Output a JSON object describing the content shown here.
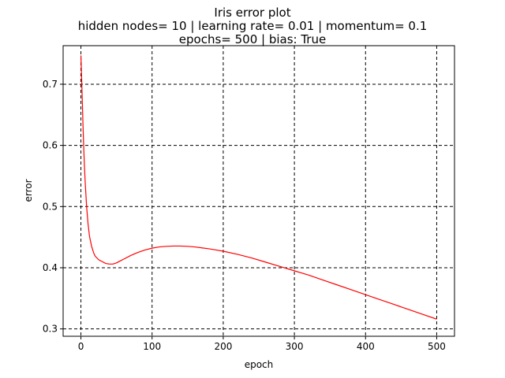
{
  "chart_data": {
    "type": "line",
    "title_lines": [
      "Iris error plot",
      "hidden nodes= 10 | learning rate= 0.01 | momentum= 0.1",
      "epochs= 500 | bias: True"
    ],
    "xlabel": "epoch",
    "ylabel": "error",
    "xlim": [
      -25,
      525
    ],
    "ylim": [
      0.288,
      0.763
    ],
    "xticks": [
      0,
      100,
      200,
      300,
      400,
      500
    ],
    "yticks": [
      0.3,
      0.4,
      0.5,
      0.6,
      0.7
    ],
    "xtick_labels": [
      "0",
      "100",
      "200",
      "300",
      "400",
      "500"
    ],
    "ytick_labels": [
      "0.3",
      "0.4",
      "0.5",
      "0.6",
      "0.7"
    ],
    "grid": true,
    "grid_style": "dashed",
    "series": [
      {
        "color": "#ff0000",
        "x": [
          0,
          1,
          2,
          3,
          4,
          5,
          6,
          7,
          8,
          10,
          12,
          15,
          18,
          20,
          25,
          30,
          35,
          40,
          45,
          50,
          55,
          60,
          70,
          80,
          90,
          100,
          110,
          120,
          130,
          140,
          150,
          160,
          170,
          180,
          190,
          200,
          220,
          240,
          260,
          280,
          300,
          320,
          340,
          360,
          380,
          400,
          420,
          440,
          460,
          480,
          500
        ],
        "y": [
          0.747,
          0.71,
          0.67,
          0.63,
          0.595,
          0.565,
          0.54,
          0.52,
          0.5,
          0.472,
          0.452,
          0.435,
          0.424,
          0.419,
          0.413,
          0.41,
          0.407,
          0.406,
          0.406,
          0.408,
          0.411,
          0.414,
          0.42,
          0.425,
          0.429,
          0.432,
          0.434,
          0.435,
          0.4355,
          0.4355,
          0.435,
          0.434,
          0.4325,
          0.431,
          0.429,
          0.427,
          0.422,
          0.416,
          0.409,
          0.402,
          0.395,
          0.388,
          0.38,
          0.372,
          0.364,
          0.356,
          0.348,
          0.34,
          0.332,
          0.324,
          0.316
        ]
      }
    ]
  }
}
